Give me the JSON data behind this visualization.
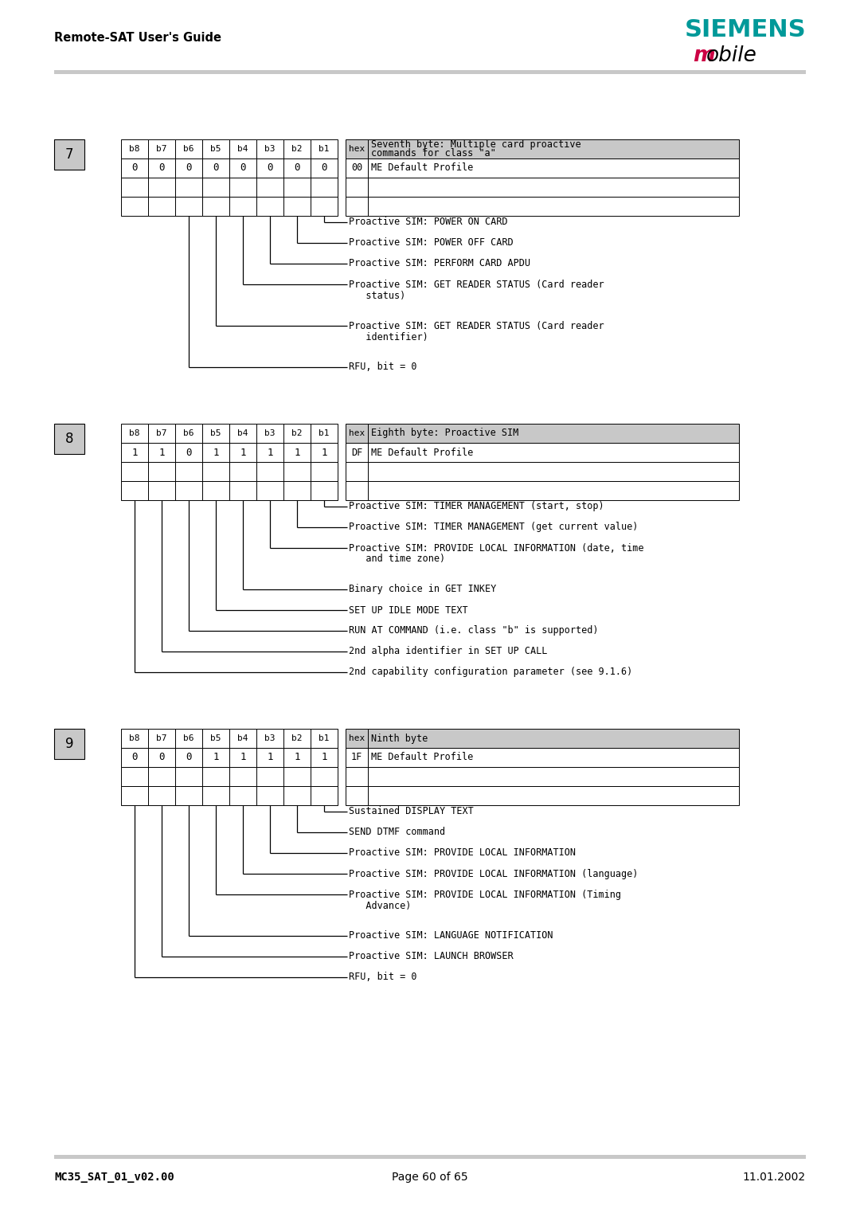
{
  "page_title": "Remote-SAT User's Guide",
  "siemens_text": "SIEMENS",
  "mobile_text": "obile",
  "mobile_m": "m",
  "footer_left": "MC35_SAT_01_v02.00",
  "footer_center": "Page 60 of 65",
  "footer_right": "11.01.2002",
  "section7": {
    "number": "7",
    "table_headers": [
      "b8",
      "b7",
      "b6",
      "b5",
      "b4",
      "b3",
      "b2",
      "b1"
    ],
    "table_values": [
      "0",
      "0",
      "0",
      "0",
      "0",
      "0",
      "0",
      "0"
    ],
    "hex_header": "hex",
    "col2_header": "Seventh byte: Multiple card proactive\ncommands for class \"a\"",
    "hex_row1": "00",
    "desc_row1": "ME Default Profile",
    "annotations": [
      "Proactive SIM: POWER ON CARD",
      "Proactive SIM: POWER OFF CARD",
      "Proactive SIM: PERFORM CARD APDU",
      "Proactive SIM: GET READER STATUS (Card reader\n   status)",
      "Proactive SIM: GET READER STATUS (Card reader\n   identifier)",
      "RFU, bit = 0"
    ]
  },
  "section8": {
    "number": "8",
    "table_headers": [
      "b8",
      "b7",
      "b6",
      "b5",
      "b4",
      "b3",
      "b2",
      "b1"
    ],
    "table_values": [
      "1",
      "1",
      "0",
      "1",
      "1",
      "1",
      "1",
      "1"
    ],
    "hex_header": "hex",
    "col2_header": "Eighth byte: Proactive SIM",
    "hex_row1": "DF",
    "desc_row1": "ME Default Profile",
    "annotations": [
      "Proactive SIM: TIMER MANAGEMENT (start, stop)",
      "Proactive SIM: TIMER MANAGEMENT (get current value)",
      "Proactive SIM: PROVIDE LOCAL INFORMATION (date, time\n   and time zone)",
      "Binary choice in GET INKEY",
      "SET UP IDLE MODE TEXT",
      "RUN AT COMMAND (i.e. class \"b\" is supported)",
      "2nd alpha identifier in SET UP CALL",
      "2nd capability configuration parameter (see 9.1.6)"
    ]
  },
  "section9": {
    "number": "9",
    "table_headers": [
      "b8",
      "b7",
      "b6",
      "b5",
      "b4",
      "b3",
      "b2",
      "b1"
    ],
    "table_values": [
      "0",
      "0",
      "0",
      "1",
      "1",
      "1",
      "1",
      "1"
    ],
    "hex_header": "hex",
    "col2_header": "Ninth byte",
    "hex_row1": "1F",
    "desc_row1": "ME Default Profile",
    "annotations": [
      "Sustained DISPLAY TEXT",
      "SEND DTMF command",
      "Proactive SIM: PROVIDE LOCAL INFORMATION",
      "Proactive SIM: PROVIDE LOCAL INFORMATION (language)",
      "Proactive SIM: PROVIDE LOCAL INFORMATION (Timing\n   Advance)",
      "Proactive SIM: LANGUAGE NOTIFICATION",
      "Proactive SIM: LAUNCH BROWSER",
      "RFU, bit = 0"
    ]
  },
  "colors": {
    "header_bg": "#c8c8c8",
    "white": "#ffffff",
    "black": "#000000",
    "light_gray": "#c8c8c8",
    "siemens_teal": "#009999",
    "mobile_red": "#cc0044"
  }
}
